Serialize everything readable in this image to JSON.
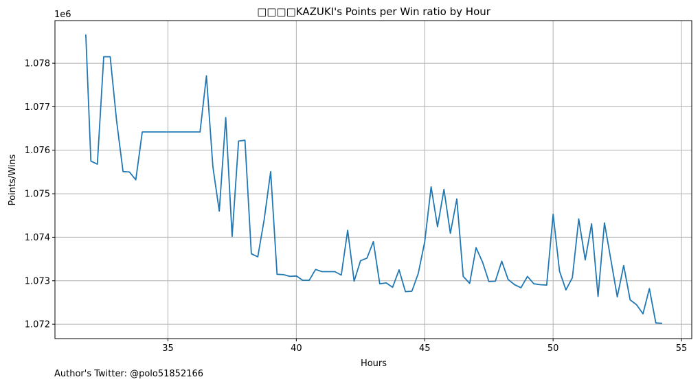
{
  "chart_data": {
    "type": "line",
    "title": "□□□□KAZUKI's Points per Win ratio by Hour",
    "xlabel": "Hours",
    "ylabel": "Points/Wins",
    "y_offset_label": "1e6",
    "xlim": [
      30.6,
      55.4
    ],
    "ylim": [
      1.07167,
      1.07898
    ],
    "x_ticks": [
      35,
      40,
      45,
      50,
      55
    ],
    "y_ticks": [
      1.072,
      1.073,
      1.074,
      1.075,
      1.076,
      1.077,
      1.078
    ],
    "x_tick_labels": [
      "35",
      "40",
      "45",
      "50",
      "55"
    ],
    "y_tick_labels": [
      "1.072",
      "1.073",
      "1.074",
      "1.075",
      "1.076",
      "1.077",
      "1.078"
    ],
    "grid": true,
    "line_color": "#1f77b4",
    "series": [
      {
        "x": [
          31.8,
          32.0,
          32.25,
          32.5,
          32.75,
          33.0,
          33.25,
          33.5,
          33.75,
          34.0,
          36.25,
          36.5,
          36.75,
          37.0,
          37.25,
          37.5,
          37.75,
          38.0,
          38.25,
          38.5,
          38.75,
          39.0,
          39.25,
          39.5,
          39.75,
          40.0,
          40.25,
          40.5,
          40.75,
          41.0,
          41.25,
          41.5,
          41.75,
          42.0,
          42.25,
          42.5,
          42.75,
          43.0,
          43.25,
          43.5,
          43.75,
          44.0,
          44.25,
          44.5,
          44.75,
          45.0,
          45.25,
          45.5,
          45.75,
          46.0,
          46.25,
          46.5,
          46.75,
          47.0,
          47.25,
          47.5,
          47.75,
          48.0,
          48.25,
          48.5,
          48.75,
          49.0,
          49.25,
          49.5,
          49.75,
          50.0,
          50.25,
          50.5,
          50.75,
          51.0,
          51.25,
          51.5,
          51.75,
          52.0,
          52.25,
          52.5,
          52.75,
          53.0,
          53.25,
          53.5,
          53.75,
          54.0,
          54.25
        ],
        "y": [
          1.07866,
          1.07575,
          1.07568,
          1.07815,
          1.07815,
          1.07668,
          1.07551,
          1.0755,
          1.07532,
          1.07642,
          1.07642,
          1.07771,
          1.07562,
          1.0746,
          1.07675,
          1.07402,
          1.07621,
          1.07623,
          1.07362,
          1.07355,
          1.07441,
          1.07551,
          1.07315,
          1.07314,
          1.0731,
          1.07311,
          1.07301,
          1.07301,
          1.07326,
          1.07321,
          1.07321,
          1.07321,
          1.07313,
          1.07416,
          1.07299,
          1.07346,
          1.07352,
          1.0739,
          1.07293,
          1.07295,
          1.07285,
          1.07325,
          1.07275,
          1.07276,
          1.07317,
          1.0739,
          1.07516,
          1.07424,
          1.0751,
          1.07409,
          1.07488,
          1.0731,
          1.07294,
          1.07376,
          1.07343,
          1.07298,
          1.07299,
          1.07345,
          1.07303,
          1.07291,
          1.07284,
          1.0731,
          1.07293,
          1.07291,
          1.0729,
          1.07453,
          1.07322,
          1.07279,
          1.07307,
          1.07442,
          1.07348,
          1.07431,
          1.07264,
          1.07433,
          1.07348,
          1.07263,
          1.07335,
          1.07256,
          1.07245,
          1.07224,
          1.07282,
          1.07203,
          1.07202
        ]
      }
    ]
  },
  "footer": {
    "author_text": "Author's Twitter: @polo51852166"
  }
}
